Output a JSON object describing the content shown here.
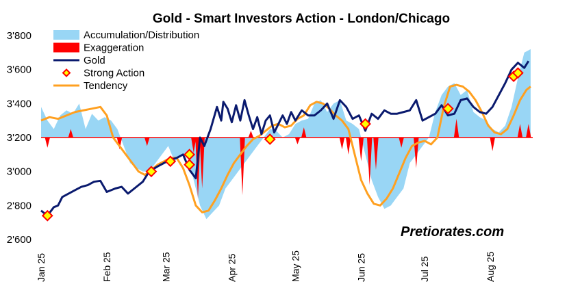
{
  "chart_data": {
    "type": "line",
    "title": "Gold - Smart Investors Action - London/Chicago",
    "watermark": "Pretiorates.com",
    "ylim": [
      2600,
      3800
    ],
    "yticks": [
      "2'600",
      "2'800",
      "3'000",
      "3'200",
      "3'400",
      "3'600",
      "3'800"
    ],
    "ytick_values": [
      2600,
      2800,
      3000,
      3200,
      3400,
      3600,
      3800
    ],
    "baseline": 3200,
    "x_range": [
      0,
      232
    ],
    "xticks": [
      {
        "label": "Jan 25",
        "day": 0
      },
      {
        "label": "Feb 25",
        "day": 31
      },
      {
        "label": "Mar 25",
        "day": 59
      },
      {
        "label": "Apr 25",
        "day": 90
      },
      {
        "label": "May 25",
        "day": 120
      },
      {
        "label": "Jun 25",
        "day": 151
      },
      {
        "label": "Jul 25",
        "day": 181
      },
      {
        "label": "Aug 25",
        "day": 212
      }
    ],
    "legend": [
      {
        "label": "Accumulation/Distribution",
        "kind": "area",
        "color": "#99d6f5"
      },
      {
        "label": "Exaggeration",
        "kind": "area",
        "color": "#ff0000"
      },
      {
        "label": "Gold",
        "kind": "line",
        "color": "#0a1a6e"
      },
      {
        "label": "Strong Action",
        "kind": "marker",
        "color": "#ffff00",
        "stroke": "#ff0000"
      },
      {
        "label": "Tendency",
        "kind": "line",
        "color": "#ffa020"
      }
    ],
    "colors": {
      "accumulation": "#99d6f5",
      "exaggeration": "#ff0000",
      "gold": "#0a1a6e",
      "tendency": "#ffa020",
      "baseline": "#ff0000",
      "marker_fill": "#ffff00",
      "marker_stroke": "#ff0000"
    },
    "series": [
      {
        "name": "Gold",
        "days": [
          0,
          3,
          6,
          8,
          10,
          13,
          16,
          19,
          22,
          25,
          28,
          31,
          35,
          38,
          41,
          44,
          48,
          51,
          55,
          58,
          61,
          64,
          67,
          70,
          73,
          75,
          77,
          80,
          83,
          85,
          86,
          88,
          90,
          92,
          94,
          96,
          98,
          100,
          102,
          104,
          106,
          108,
          110,
          112,
          114,
          116,
          118,
          120,
          123,
          126,
          129,
          132,
          135,
          138,
          141,
          144,
          147,
          150,
          153,
          156,
          159,
          162,
          165,
          168,
          171,
          174,
          177,
          180,
          183,
          186,
          189,
          192,
          195,
          198,
          201,
          204,
          207,
          210,
          213,
          216,
          219,
          222,
          225,
          228,
          230
        ],
        "values": [
          2770,
          2740,
          2790,
          2800,
          2850,
          2870,
          2890,
          2910,
          2920,
          2940,
          2945,
          2880,
          2900,
          2910,
          2870,
          2900,
          2940,
          3000,
          3030,
          3050,
          3070,
          3080,
          3100,
          3010,
          2960,
          3200,
          3150,
          3250,
          3380,
          3300,
          3410,
          3370,
          3290,
          3390,
          3300,
          3420,
          3330,
          3250,
          3320,
          3220,
          3300,
          3330,
          3230,
          3280,
          3330,
          3280,
          3350,
          3300,
          3360,
          3330,
          3330,
          3360,
          3400,
          3310,
          3420,
          3380,
          3310,
          3330,
          3240,
          3340,
          3310,
          3360,
          3340,
          3340,
          3350,
          3360,
          3420,
          3300,
          3320,
          3340,
          3390,
          3330,
          3340,
          3420,
          3430,
          3380,
          3350,
          3340,
          3380,
          3450,
          3520,
          3600,
          3640,
          3610,
          3650
        ]
      },
      {
        "name": "Tendency",
        "days": [
          0,
          4,
          8,
          12,
          16,
          20,
          24,
          28,
          31,
          34,
          37,
          40,
          43,
          46,
          49,
          52,
          55,
          58,
          61,
          64,
          67,
          70,
          73,
          76,
          79,
          82,
          85,
          88,
          91,
          94,
          97,
          100,
          103,
          106,
          109,
          112,
          115,
          118,
          121,
          124,
          127,
          130,
          133,
          136,
          139,
          142,
          145,
          148,
          151,
          154,
          157,
          160,
          163,
          166,
          169,
          172,
          175,
          178,
          181,
          184,
          187,
          190,
          193,
          196,
          199,
          202,
          205,
          208,
          211,
          214,
          217,
          220,
          223,
          226,
          229,
          231
        ],
        "values": [
          3300,
          3320,
          3310,
          3330,
          3350,
          3360,
          3370,
          3380,
          3330,
          3200,
          3150,
          3100,
          3050,
          3000,
          2980,
          3010,
          3040,
          3060,
          3080,
          3080,
          3020,
          2920,
          2800,
          2760,
          2770,
          2830,
          2900,
          2980,
          3050,
          3100,
          3150,
          3190,
          3210,
          3240,
          3270,
          3280,
          3260,
          3270,
          3310,
          3330,
          3390,
          3410,
          3400,
          3370,
          3330,
          3300,
          3250,
          3100,
          2950,
          2870,
          2810,
          2800,
          2840,
          2900,
          2990,
          3080,
          3150,
          3170,
          3180,
          3160,
          3200,
          3380,
          3500,
          3510,
          3500,
          3470,
          3420,
          3350,
          3270,
          3230,
          3220,
          3250,
          3330,
          3420,
          3480,
          3500
        ]
      },
      {
        "name": "Accumulation/Distribution",
        "days": [
          0,
          3,
          6,
          9,
          12,
          15,
          18,
          21,
          24,
          27,
          30,
          33,
          36,
          39,
          42,
          45,
          48,
          51,
          54,
          57,
          60,
          63,
          66,
          69,
          72,
          75,
          78,
          81,
          84,
          87,
          90,
          93,
          96,
          99,
          102,
          105,
          108,
          111,
          114,
          117,
          120,
          123,
          126,
          129,
          132,
          135,
          138,
          141,
          144,
          147,
          150,
          153,
          156,
          159,
          162,
          165,
          168,
          171,
          174,
          177,
          180,
          183,
          186,
          189,
          192,
          195,
          198,
          201,
          204,
          207,
          210,
          213,
          216,
          219,
          222,
          225,
          228,
          231
        ],
        "values": [
          3380,
          3300,
          3250,
          3330,
          3360,
          3340,
          3400,
          3250,
          3340,
          3300,
          3320,
          3300,
          3250,
          3150,
          3050,
          3020,
          3000,
          3000,
          3050,
          3100,
          3150,
          3060,
          3090,
          3100,
          2950,
          2800,
          2720,
          2760,
          2800,
          2900,
          2950,
          3000,
          3050,
          3100,
          3150,
          3200,
          3250,
          3240,
          3200,
          3220,
          3280,
          3300,
          3310,
          3400,
          3420,
          3350,
          3400,
          3420,
          3300,
          3280,
          3250,
          3100,
          2950,
          2850,
          2780,
          2800,
          2850,
          2900,
          3050,
          3100,
          3150,
          3200,
          3350,
          3450,
          3500,
          3520,
          3450,
          3480,
          3350,
          3320,
          3300,
          3250,
          3230,
          3270,
          3380,
          3550,
          3700,
          3720
        ]
      }
    ],
    "exaggeration_spikes": [
      {
        "day": 3,
        "value": 3140
      },
      {
        "day": 14,
        "value": 3250
      },
      {
        "day": 37,
        "value": 3130
      },
      {
        "day": 50,
        "value": 3150
      },
      {
        "day": 72,
        "value": 3110
      },
      {
        "day": 74,
        "value": 2840
      },
      {
        "day": 76,
        "value": 2900
      },
      {
        "day": 95,
        "value": 2860
      },
      {
        "day": 99,
        "value": 3240
      },
      {
        "day": 121,
        "value": 3160
      },
      {
        "day": 124,
        "value": 3260
      },
      {
        "day": 142,
        "value": 3130
      },
      {
        "day": 145,
        "value": 3100
      },
      {
        "day": 151,
        "value": 3060
      },
      {
        "day": 155,
        "value": 2920
      },
      {
        "day": 158,
        "value": 3010
      },
      {
        "day": 170,
        "value": 3140
      },
      {
        "day": 177,
        "value": 3020
      },
      {
        "day": 196,
        "value": 3310
      },
      {
        "day": 213,
        "value": 3120
      },
      {
        "day": 226,
        "value": 3280
      },
      {
        "day": 230,
        "value": 3280
      }
    ],
    "strong_action": [
      {
        "day": 3,
        "value": 2740
      },
      {
        "day": 52,
        "value": 3000
      },
      {
        "day": 61,
        "value": 3060
      },
      {
        "day": 70,
        "value": 3100
      },
      {
        "day": 70,
        "value": 3040
      },
      {
        "day": 108,
        "value": 3190
      },
      {
        "day": 153,
        "value": 3280
      },
      {
        "day": 192,
        "value": 3370
      },
      {
        "day": 223,
        "value": 3560
      },
      {
        "day": 225,
        "value": 3580
      }
    ]
  }
}
